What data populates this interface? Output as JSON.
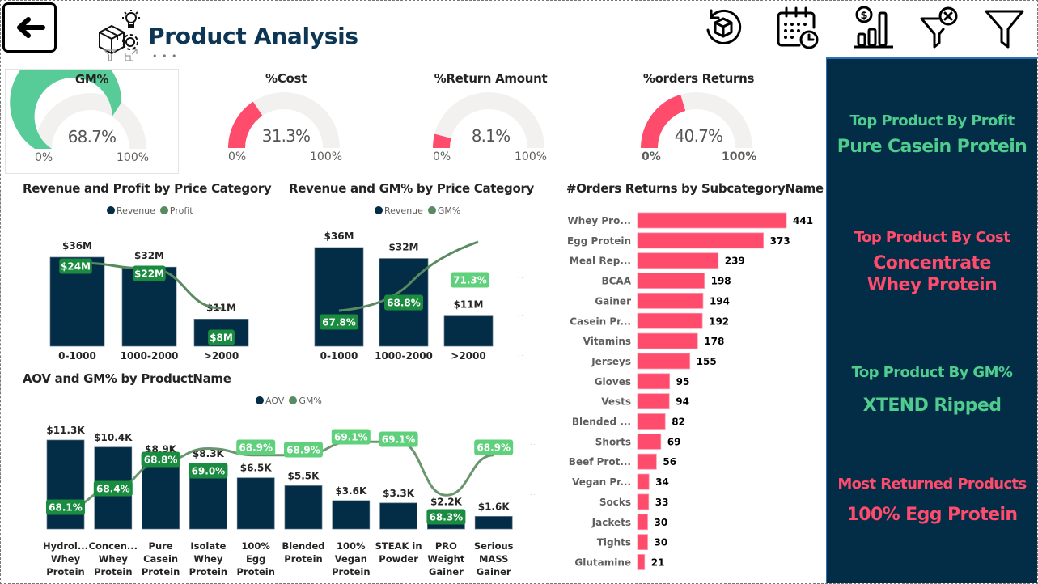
{
  "header": {
    "title": "Product Analysis",
    "back_icon": "arrow-left-icon",
    "title_icon": "product-box-gear-lightbulb-icon",
    "visual_tools": [
      "filter-icon",
      "focus-mode-icon",
      "more-options-icon"
    ],
    "more_label": "…",
    "toolbar_icons": [
      {
        "name": "reset-product-icon"
      },
      {
        "name": "calendar-clock-icon"
      },
      {
        "name": "dollar-chart-icon"
      },
      {
        "name": "clear-filter-icon"
      },
      {
        "name": "filter-icon"
      }
    ]
  },
  "colors": {
    "navy": "#032d46",
    "green_gauge": "#57cc99",
    "red": "#ff4b6c",
    "track": "#f2f1f0",
    "line_green": "#5a8a5f",
    "label_dark_green": "#1a8c3f",
    "label_light_green": "#5fd07b"
  },
  "gauges": [
    {
      "title": "GM%",
      "value": 68.7,
      "display": "68.7%",
      "min": "0%",
      "max": "100%",
      "color": "#57cc99"
    },
    {
      "title": "%Cost",
      "value": 31.3,
      "display": "31.3%",
      "min": "0%",
      "max": "100%",
      "color": "#ff4b6c"
    },
    {
      "title": "%Return Amount",
      "value": 8.1,
      "display": "8.1%",
      "min": "0%",
      "max": "100%",
      "color": "#ff4b6c"
    },
    {
      "title": "%orders Returns",
      "value": 40.7,
      "display": "40.7%",
      "min": "0%",
      "max": "100%",
      "color": "#ff4b6c"
    }
  ],
  "side_panel": {
    "items": [
      {
        "label": "Top Product By Profit",
        "value": "Pure Casein Protein",
        "tone": "green"
      },
      {
        "label": "Top Product By Cost",
        "value": "Concentrate Whey Protein",
        "tone": "red"
      },
      {
        "label": "Top Product By GM%",
        "value": "XTEND Ripped",
        "tone": "green"
      },
      {
        "label": "Most Returned Products",
        "value": "100% Egg Protein",
        "tone": "red"
      }
    ]
  },
  "chart_data": [
    {
      "id": "rev_profit",
      "type": "bar",
      "title": "Revenue and Profit by Price Category",
      "legend": [
        "Revenue",
        "Profit"
      ],
      "categories": [
        "0-1000",
        "1000-2000",
        ">2000"
      ],
      "series": [
        {
          "name": "Revenue",
          "kind": "bar",
          "values": [
            36,
            32,
            11
          ],
          "labels": [
            "$36M",
            "$32M",
            "$11M"
          ]
        },
        {
          "name": "Profit",
          "kind": "line",
          "values": [
            24,
            22,
            8
          ],
          "labels": [
            "$24M",
            "$22M",
            "$8M"
          ]
        }
      ],
      "unit": "$M"
    },
    {
      "id": "rev_gm",
      "type": "bar",
      "title": "Revenue and GM% by Price Category",
      "legend": [
        "Revenue",
        "GM%"
      ],
      "categories": [
        "0-1000",
        "1000-2000",
        ">2000"
      ],
      "series": [
        {
          "name": "Revenue",
          "kind": "bar",
          "values": [
            36,
            32,
            11
          ],
          "labels": [
            "$36M",
            "$32M",
            "$11M"
          ]
        },
        {
          "name": "GM%",
          "kind": "line",
          "values": [
            67.8,
            68.8,
            71.3
          ],
          "labels": [
            "67.8%",
            "68.8%",
            "71.3%"
          ]
        }
      ]
    },
    {
      "id": "aov_gm",
      "type": "bar",
      "title": "AOV and GM% by ProductName",
      "legend": [
        "AOV",
        "GM%"
      ],
      "categories": [
        [
          "Hydrol...",
          "Whey",
          "Protein"
        ],
        [
          "Concen...",
          "Whey",
          "Protein"
        ],
        [
          "Pure",
          "Casein",
          "Protein"
        ],
        [
          "Isolate",
          "Whey",
          "Protein"
        ],
        [
          "100%",
          "Egg",
          "Protein"
        ],
        [
          "Blended",
          "Protein"
        ],
        [
          "100%",
          "Vegan",
          "Protein"
        ],
        [
          "STEAK in",
          "Powder"
        ],
        [
          "PRO",
          "Weight",
          "Gainer"
        ],
        [
          "Serious",
          "MASS",
          "Gainer"
        ]
      ],
      "series": [
        {
          "name": "AOV",
          "kind": "bar",
          "values": [
            11.3,
            10.4,
            8.9,
            8.3,
            6.5,
            5.5,
            3.6,
            3.3,
            2.2,
            1.6
          ],
          "labels": [
            "$11.3K",
            "$10.4K",
            "$8.9K",
            "$8.3K",
            "$6.5K",
            "$5.5K",
            "$3.6K",
            "$3.3K",
            "$2.2K",
            "$1.6K"
          ]
        },
        {
          "name": "GM%",
          "kind": "line",
          "values": [
            68.1,
            68.4,
            68.8,
            69.0,
            68.9,
            68.9,
            69.1,
            69.1,
            68.3,
            68.9
          ],
          "labels": [
            "68.1%",
            "68.4%",
            "68.8%",
            "69.0%",
            "68.9%",
            "68.9%",
            "69.1%",
            "69.1%",
            "68.3%",
            "68.9%"
          ]
        }
      ]
    },
    {
      "id": "returns_sub",
      "type": "bar",
      "orientation": "horizontal",
      "title": "#Orders Returns by SubcategoryName",
      "categories": [
        "Whey Pro...",
        "Egg Protein",
        "Meal Rep...",
        "BCAA",
        "Gainer",
        "Casein Pr...",
        "Vitamins",
        "Jerseys",
        "Gloves",
        "Vests",
        "Blended ...",
        "Shorts",
        "Beef Prot...",
        "Vegan Pr...",
        "Socks",
        "Jackets",
        "Tights",
        "Glutamine"
      ],
      "values": [
        441,
        373,
        239,
        198,
        194,
        192,
        178,
        155,
        95,
        94,
        82,
        69,
        56,
        34,
        33,
        30,
        30,
        21
      ]
    }
  ]
}
